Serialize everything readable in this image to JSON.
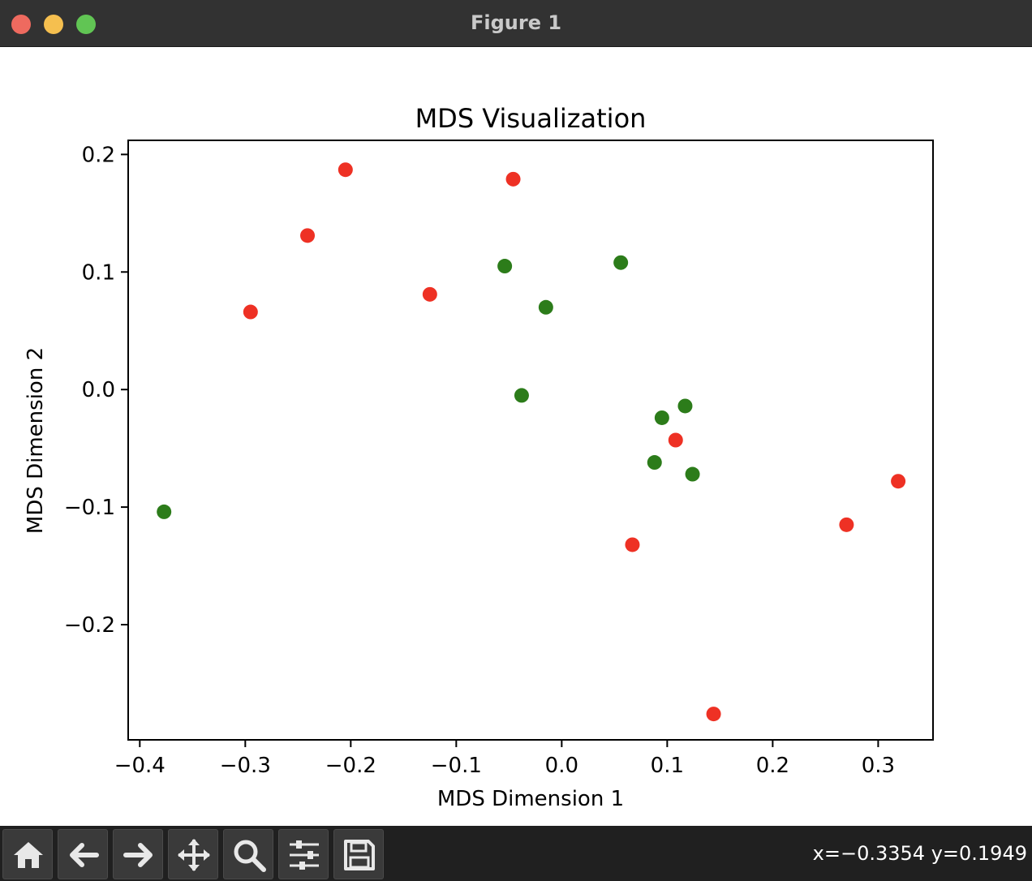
{
  "window": {
    "title": "Figure 1"
  },
  "toolbar": {
    "buttons": [
      {
        "name": "home-icon"
      },
      {
        "name": "back-arrow-icon"
      },
      {
        "name": "forward-arrow-icon"
      },
      {
        "name": "pan-icon"
      },
      {
        "name": "zoom-icon"
      },
      {
        "name": "configure-subplots-icon"
      },
      {
        "name": "save-icon"
      }
    ],
    "coordinates": "x=−0.3354 y=0.1949"
  },
  "colors": {
    "red": "#ee3124",
    "green": "#2c7c1a"
  },
  "chart_data": {
    "type": "scatter",
    "title": "MDS Visualization",
    "xlabel": "MDS Dimension 1",
    "ylabel": "MDS Dimension 2",
    "xlim": [
      -0.411,
      0.352
    ],
    "ylim": [
      -0.298,
      0.212
    ],
    "xticks": [
      -0.4,
      -0.3,
      -0.2,
      -0.1,
      0.0,
      0.1,
      0.2,
      0.3
    ],
    "xtick_labels": [
      "−0.4",
      "−0.3",
      "−0.2",
      "−0.1",
      "0.0",
      "0.1",
      "0.2",
      "0.3"
    ],
    "yticks": [
      -0.2,
      -0.1,
      0.0,
      0.1,
      0.2
    ],
    "ytick_labels": [
      "−0.2",
      "−0.1",
      "0.0",
      "0.1",
      "0.2"
    ],
    "grid": false,
    "series": [
      {
        "color": "#ee3124",
        "points": [
          {
            "x": -0.205,
            "y": 0.187
          },
          {
            "x": -0.046,
            "y": 0.179
          },
          {
            "x": -0.241,
            "y": 0.131
          },
          {
            "x": -0.295,
            "y": 0.066
          },
          {
            "x": -0.125,
            "y": 0.081
          },
          {
            "x": 0.108,
            "y": -0.043
          },
          {
            "x": 0.319,
            "y": -0.078
          },
          {
            "x": 0.27,
            "y": -0.115
          },
          {
            "x": 0.067,
            "y": -0.132
          },
          {
            "x": 0.144,
            "y": -0.276
          }
        ]
      },
      {
        "color": "#2c7c1a",
        "points": [
          {
            "x": 0.056,
            "y": 0.108
          },
          {
            "x": -0.054,
            "y": 0.105
          },
          {
            "x": -0.015,
            "y": 0.07
          },
          {
            "x": -0.038,
            "y": -0.005
          },
          {
            "x": 0.117,
            "y": -0.014
          },
          {
            "x": 0.095,
            "y": -0.024
          },
          {
            "x": 0.088,
            "y": -0.062
          },
          {
            "x": 0.124,
            "y": -0.072
          },
          {
            "x": -0.377,
            "y": -0.104
          }
        ]
      }
    ]
  }
}
